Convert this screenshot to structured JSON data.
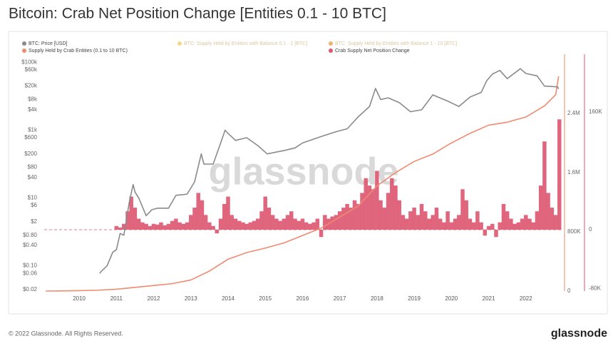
{
  "chart_data": {
    "type": "combo",
    "title": "Bitcoin: Crab Net Position Change [Entities 0.1 - 10 BTC]",
    "watermark": "glassnode",
    "footer": "© 2022 Glassnode. All Rights Reserved.",
    "logo": "glassnode",
    "xlim": [
      2009.06,
      2023.0
    ],
    "xticks": [
      2010,
      2011,
      2012,
      2013,
      2014,
      2015,
      2016,
      2017,
      2018,
      2019,
      2020,
      2021,
      2022
    ],
    "ylim": [
      0.018,
      130000
    ],
    "log_y": true,
    "yticks": [
      {
        "value": 0.02,
        "label": "$0.02"
      },
      {
        "value": 0.06,
        "label": "$0.06"
      },
      {
        "value": 0.1,
        "label": "$0.10"
      },
      {
        "value": 0.4,
        "label": "$0.40"
      },
      {
        "value": 0.8,
        "label": "$0.80"
      },
      {
        "value": 2,
        "label": "$2"
      },
      {
        "value": 6,
        "label": "$6"
      },
      {
        "value": 10,
        "label": "$10"
      },
      {
        "value": 40,
        "label": "$40"
      },
      {
        "value": 80,
        "label": "$80"
      },
      {
        "value": 200,
        "label": "$200"
      },
      {
        "value": 600,
        "label": "$600"
      },
      {
        "value": 1000,
        "label": "$1k"
      },
      {
        "value": 4000,
        "label": "$4k"
      },
      {
        "value": 8000,
        "label": "$8k"
      },
      {
        "value": 20000,
        "label": "$20k"
      },
      {
        "value": 60000,
        "label": "$60k"
      },
      {
        "value": 100000,
        "label": "$100k"
      }
    ],
    "y2lim": [
      0,
      3140000
    ],
    "y2ticks": [
      0,
      {
        "value": 800000,
        "label": "800K"
      },
      {
        "value": 1600000,
        "label": "1.6M"
      },
      {
        "value": 2400000,
        "label": "2.4M"
      }
    ],
    "y3lim": [
      -83400,
      232700
    ],
    "y3ticks": [
      {
        "value": -80000,
        "label": "-80K"
      },
      0,
      {
        "value": 160000,
        "label": "160K"
      }
    ],
    "series": [
      {
        "name": "BTC: Price [USD]",
        "color": "#8a8a8a",
        "type": "line",
        "axis": "y",
        "x": [
          2010.55,
          2010.6,
          2010.75,
          2010.9,
          2011.0,
          2011.1,
          2011.2,
          2011.35,
          2011.45,
          2011.5,
          2011.6,
          2011.8,
          2011.95,
          2012.1,
          2012.4,
          2012.6,
          2012.9,
          2013.1,
          2013.28,
          2013.35,
          2013.6,
          2013.85,
          2013.92,
          2014.0,
          2014.2,
          2014.5,
          2014.8,
          2015.05,
          2015.5,
          2015.8,
          2016.0,
          2016.5,
          2016.9,
          2017.2,
          2017.5,
          2017.8,
          2017.96,
          2018.1,
          2018.3,
          2018.6,
          2018.9,
          2019.2,
          2019.5,
          2019.9,
          2020.2,
          2020.5,
          2020.8,
          2020.95,
          2021.1,
          2021.3,
          2021.5,
          2021.85,
          2022.0,
          2022.3,
          2022.5,
          2022.85,
          2022.88
        ],
        "values": [
          0.06,
          0.07,
          0.1,
          0.25,
          0.3,
          0.9,
          0.8,
          8,
          25,
          15,
          10,
          3,
          4.5,
          5,
          5,
          12,
          13,
          30,
          200,
          100,
          100,
          600,
          1000,
          800,
          500,
          600,
          350,
          200,
          250,
          300,
          420,
          650,
          900,
          1100,
          2500,
          5000,
          17000,
          8000,
          9000,
          6500,
          3500,
          4000,
          11000,
          7200,
          5000,
          9500,
          13000,
          29000,
          45000,
          58000,
          33000,
          65000,
          47000,
          40000,
          20000,
          19000,
          16500
        ]
      },
      {
        "name": "BTC: Supply Held by Entities with Balance 0.1 - 1 [BTC]",
        "color": "#f5d98a",
        "hidden": true
      },
      {
        "name": "BTC: Supply Held by Entities with Balance 1 - 10 [BTC]",
        "color": "#f0b070",
        "hidden": true
      },
      {
        "name": "Supply Held by Crab Entities (0.1 to 10 BTC)",
        "color": "#f08a70",
        "type": "line",
        "axis": "y2",
        "x": [
          2009.1,
          2009.5,
          2010.0,
          2010.5,
          2011.0,
          2011.5,
          2012.0,
          2012.5,
          2013.0,
          2013.5,
          2014.0,
          2014.5,
          2015.0,
          2015.5,
          2016.0,
          2016.5,
          2017.0,
          2017.5,
          2018.0,
          2018.5,
          2019.0,
          2019.5,
          2020.0,
          2020.5,
          2021.0,
          2021.5,
          2022.0,
          2022.5,
          2022.8,
          2022.88
        ],
        "values": [
          0,
          2000,
          5000,
          12000,
          25000,
          50000,
          75000,
          100000,
          150000,
          270000,
          430000,
          520000,
          580000,
          650000,
          750000,
          850000,
          1000000,
          1150000,
          1420000,
          1600000,
          1750000,
          1850000,
          2000000,
          2130000,
          2240000,
          2280000,
          2350000,
          2500000,
          2650000,
          2900000
        ]
      },
      {
        "name": "Crab Supply Net Position Change",
        "color": "#dd5570",
        "type": "bar",
        "axis": "y3",
        "x": [
          2011.0,
          2011.1,
          2011.2,
          2011.3,
          2011.4,
          2011.5,
          2011.6,
          2011.7,
          2011.8,
          2011.9,
          2012.0,
          2012.1,
          2012.2,
          2012.3,
          2012.4,
          2012.5,
          2012.6,
          2012.7,
          2012.8,
          2012.9,
          2013.0,
          2013.1,
          2013.2,
          2013.3,
          2013.4,
          2013.5,
          2013.6,
          2013.7,
          2013.8,
          2013.9,
          2014.0,
          2014.1,
          2014.2,
          2014.3,
          2014.4,
          2014.5,
          2014.6,
          2014.7,
          2014.8,
          2014.9,
          2015.0,
          2015.1,
          2015.2,
          2015.3,
          2015.4,
          2015.5,
          2015.6,
          2015.7,
          2015.8,
          2015.9,
          2016.0,
          2016.1,
          2016.2,
          2016.3,
          2016.4,
          2016.5,
          2016.6,
          2016.7,
          2016.8,
          2016.9,
          2017.0,
          2017.1,
          2017.2,
          2017.3,
          2017.4,
          2017.5,
          2017.6,
          2017.7,
          2017.8,
          2017.9,
          2018.0,
          2018.1,
          2018.2,
          2018.3,
          2018.4,
          2018.5,
          2018.6,
          2018.7,
          2018.8,
          2018.9,
          2019.0,
          2019.1,
          2019.2,
          2019.3,
          2019.4,
          2019.5,
          2019.6,
          2019.7,
          2019.8,
          2019.9,
          2020.0,
          2020.1,
          2020.2,
          2020.3,
          2020.4,
          2020.5,
          2020.6,
          2020.7,
          2020.8,
          2020.9,
          2021.0,
          2021.1,
          2021.2,
          2021.3,
          2021.4,
          2021.5,
          2021.6,
          2021.7,
          2021.8,
          2021.9,
          2022.0,
          2022.1,
          2022.2,
          2022.3,
          2022.4,
          2022.5,
          2022.6,
          2022.7,
          2022.8,
          2022.9
        ],
        "values": [
          5000,
          3000,
          8000,
          25000,
          45000,
          30000,
          15000,
          10000,
          8000,
          5000,
          8000,
          7000,
          10000,
          6000,
          8000,
          12000,
          15000,
          10000,
          8000,
          10000,
          20000,
          30000,
          50000,
          40000,
          20000,
          10000,
          5000,
          -5000,
          15000,
          35000,
          45000,
          20000,
          15000,
          12000,
          10000,
          8000,
          10000,
          12000,
          15000,
          25000,
          45000,
          30000,
          20000,
          15000,
          12000,
          15000,
          20000,
          25000,
          15000,
          12000,
          15000,
          10000,
          8000,
          10000,
          15000,
          -10000,
          20000,
          15000,
          18000,
          20000,
          25000,
          30000,
          35000,
          30000,
          40000,
          35000,
          50000,
          70000,
          60000,
          55000,
          80000,
          40000,
          30000,
          50000,
          70000,
          60000,
          40000,
          20000,
          15000,
          25000,
          30000,
          20000,
          35000,
          25000,
          15000,
          20000,
          30000,
          15000,
          10000,
          25000,
          10000,
          15000,
          20000,
          55000,
          40000,
          15000,
          10000,
          25000,
          10000,
          -8000,
          5000,
          8000,
          -10000,
          10000,
          35000,
          25000,
          15000,
          8000,
          10000,
          15000,
          20000,
          15000,
          10000,
          25000,
          60000,
          120000,
          50000,
          30000,
          20000,
          150000
        ]
      }
    ]
  }
}
